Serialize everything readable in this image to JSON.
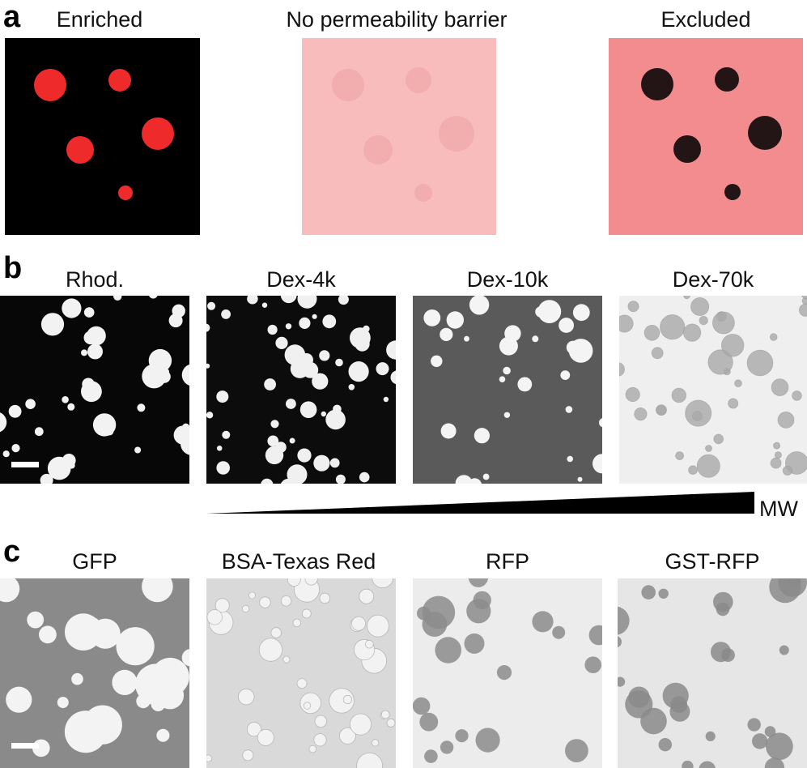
{
  "panels": {
    "a": {
      "label": "a",
      "items": [
        {
          "title": "Enriched",
          "background": "#000000",
          "droplet_color": "#ee2a2a"
        },
        {
          "title": "No permeability barrier",
          "background": "#f8bcbd",
          "droplet_color": "#f3adae"
        },
        {
          "title": "Excluded",
          "background": "#f28c8e",
          "droplet_color": "#231516"
        }
      ]
    },
    "b": {
      "label": "b",
      "items": [
        {
          "title": "Rhod."
        },
        {
          "title": "Dex-4k"
        },
        {
          "title": "Dex-10k"
        },
        {
          "title": "Dex-70k"
        }
      ],
      "gradient_label": "MW"
    },
    "c": {
      "label": "c",
      "items": [
        {
          "title": "GFP"
        },
        {
          "title": "BSA-Texas Red"
        },
        {
          "title": "RFP"
        },
        {
          "title": "GST-RFP"
        }
      ]
    }
  }
}
